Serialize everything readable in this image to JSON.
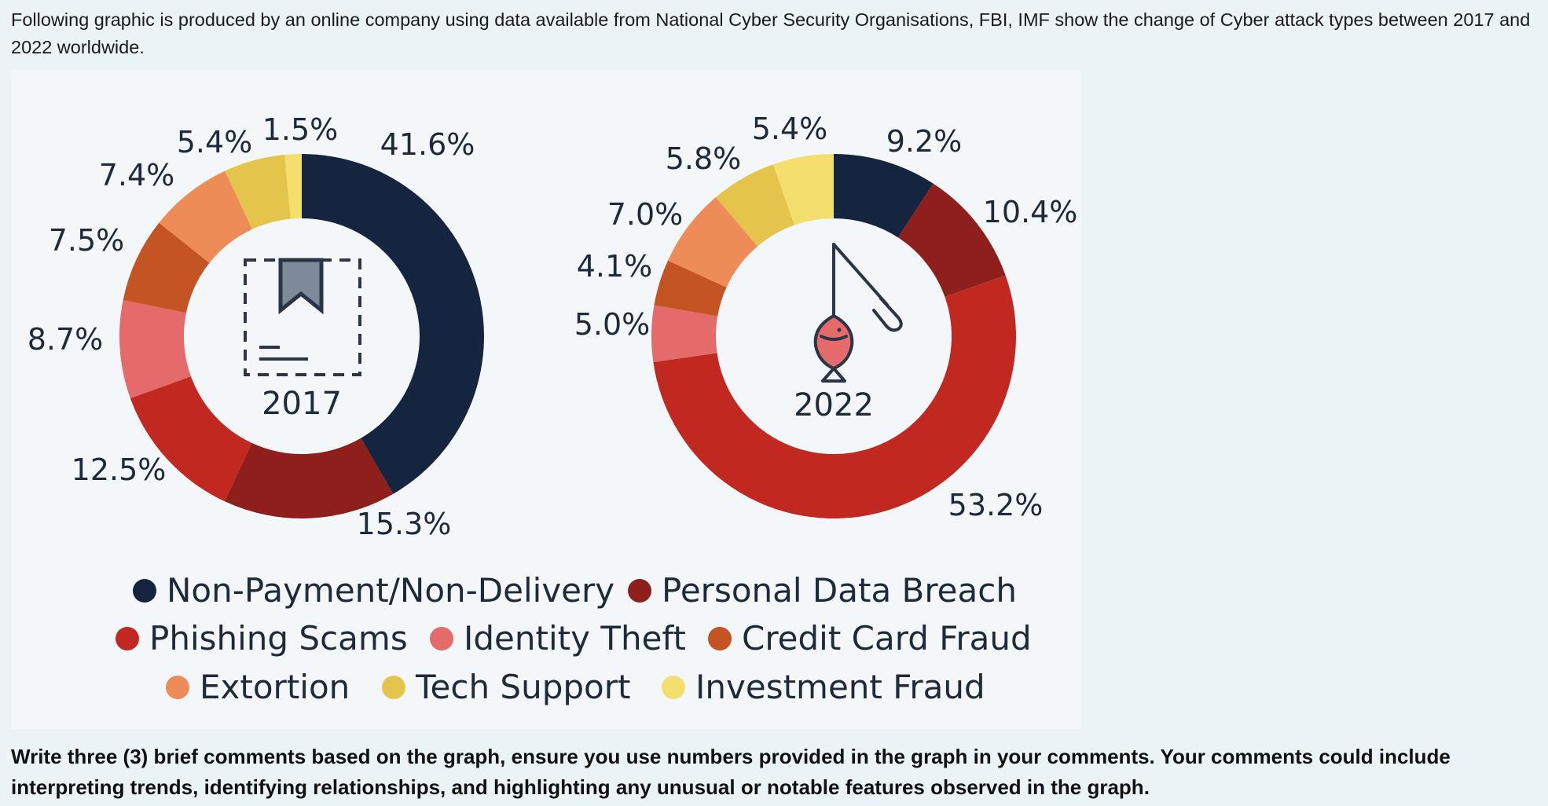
{
  "intro_text": "Following graphic is produced by an online company using data available from National Cyber Security Organisations, FBI, IMF show the change of Cyber attack types between 2017 and 2022 worldwide.",
  "question_text": "Write three (3) brief comments based on the graph, ensure you use numbers provided in the graph in your comments. Your comments could include interpreting trends, identifying relationships, and highlighting any unusual or notable features observed in the graph.",
  "chart_data": {
    "type": "pie",
    "style": "donut",
    "categories": [
      "Non-Payment/Non-Delivery",
      "Personal Data Breach",
      "Phishing Scams",
      "Identity Theft",
      "Credit Card Fraud",
      "Extortion",
      "Tech Support",
      "Investment Fraud"
    ],
    "colors": [
      "#15253f",
      "#8e1f1c",
      "#c1281f",
      "#e46b6a",
      "#c45424",
      "#ee8c58",
      "#e4c44a",
      "#f4df6e"
    ],
    "series": [
      {
        "name": "2017",
        "values": [
          41.6,
          15.3,
          12.5,
          8.7,
          7.5,
          7.4,
          5.4,
          1.5
        ],
        "labels": [
          "41.6%",
          "15.3%",
          "12.5%",
          "8.7%",
          "7.5%",
          "7.4%",
          "5.4%",
          "1.5%"
        ]
      },
      {
        "name": "2022",
        "values": [
          9.2,
          10.4,
          53.2,
          5.0,
          4.1,
          7.0,
          5.8,
          5.4
        ],
        "labels": [
          "9.2%",
          "10.4%",
          "53.2%",
          "5.0%",
          "4.1%",
          "7.0%",
          "5.8%",
          "5.4%"
        ]
      }
    ],
    "legend": {
      "position": "bottom"
    }
  },
  "icons": {
    "2017": "document-bookmark-icon",
    "2022": "fishing-hook-fish-icon"
  }
}
